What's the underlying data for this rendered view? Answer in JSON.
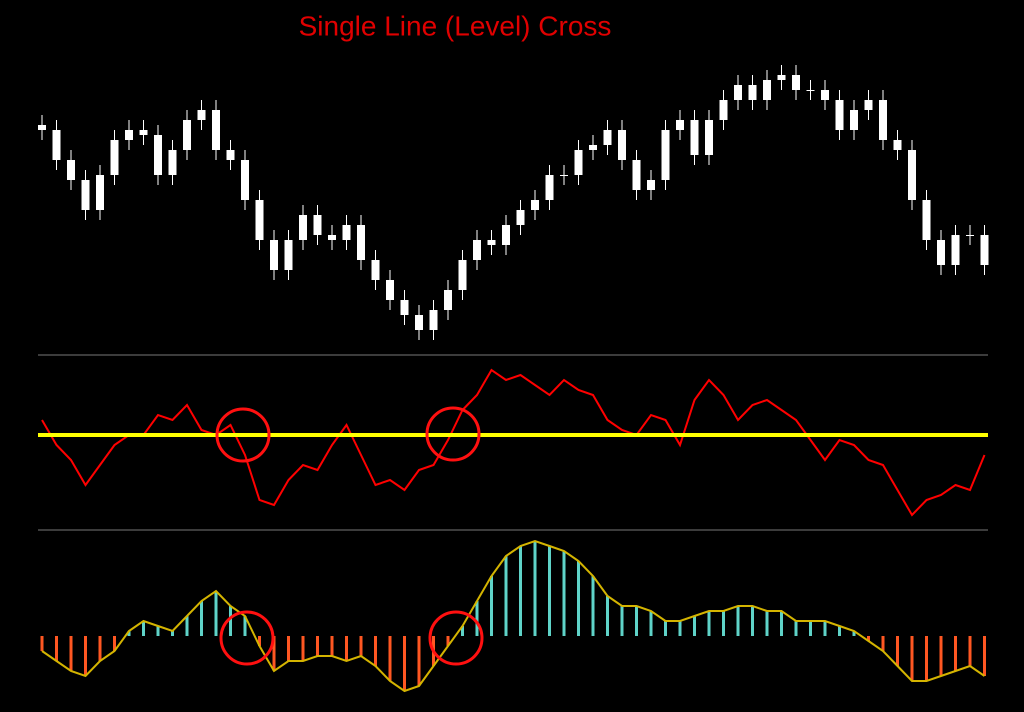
{
  "chart_data": [
    {
      "type": "candlestick",
      "title": "Single Line (Level) Cross",
      "color": "#ffffff",
      "ylim": [
        40,
        350
      ],
      "open": [
        275,
        270,
        240,
        220,
        190,
        225,
        260,
        270,
        265,
        225,
        250,
        280,
        290,
        250,
        240,
        200,
        160,
        130,
        160,
        185,
        165,
        160,
        175,
        140,
        120,
        100,
        85,
        70,
        90,
        110,
        140,
        160,
        155,
        175,
        190,
        200,
        225,
        225,
        250,
        255,
        270,
        240,
        210,
        220,
        270,
        280,
        245,
        280,
        300,
        315,
        300,
        320,
        325,
        310,
        310,
        300,
        270,
        290,
        300,
        260,
        250,
        200,
        160,
        135,
        165,
        165
      ],
      "high": [
        285,
        280,
        250,
        230,
        235,
        270,
        280,
        280,
        275,
        260,
        290,
        300,
        300,
        260,
        250,
        210,
        170,
        170,
        195,
        195,
        175,
        185,
        185,
        150,
        130,
        110,
        95,
        100,
        120,
        150,
        170,
        170,
        185,
        200,
        210,
        235,
        235,
        260,
        265,
        280,
        280,
        250,
        230,
        280,
        290,
        290,
        290,
        310,
        325,
        325,
        330,
        335,
        335,
        320,
        320,
        310,
        300,
        310,
        310,
        270,
        260,
        210,
        170,
        175,
        175,
        175
      ],
      "low": [
        260,
        230,
        210,
        180,
        180,
        215,
        250,
        255,
        215,
        215,
        240,
        270,
        240,
        230,
        190,
        150,
        120,
        120,
        150,
        155,
        150,
        150,
        130,
        110,
        90,
        75,
        60,
        60,
        80,
        100,
        130,
        145,
        145,
        165,
        180,
        190,
        215,
        215,
        240,
        245,
        230,
        200,
        200,
        210,
        260,
        235,
        235,
        270,
        290,
        290,
        290,
        310,
        300,
        300,
        290,
        260,
        260,
        280,
        250,
        240,
        190,
        150,
        125,
        125,
        155,
        125
      ],
      "close": [
        270,
        240,
        220,
        190,
        225,
        260,
        270,
        265,
        225,
        250,
        280,
        290,
        250,
        240,
        200,
        160,
        130,
        160,
        185,
        165,
        160,
        175,
        140,
        120,
        100,
        85,
        70,
        90,
        110,
        140,
        160,
        155,
        175,
        190,
        200,
        225,
        225,
        250,
        255,
        270,
        240,
        210,
        220,
        270,
        280,
        245,
        280,
        300,
        315,
        300,
        320,
        325,
        310,
        310,
        300,
        270,
        290,
        300,
        260,
        250,
        200,
        160,
        135,
        165,
        165,
        135
      ]
    },
    {
      "type": "line",
      "color": "#ff0000",
      "ylim": [
        -95,
        75
      ],
      "level": 0,
      "level_color": "#ffff00",
      "values": [
        15,
        -10,
        -25,
        -50,
        -30,
        -10,
        0,
        0,
        20,
        15,
        30,
        5,
        0,
        10,
        -20,
        -65,
        -70,
        -45,
        -30,
        -35,
        -10,
        10,
        -20,
        -50,
        -45,
        -55,
        -35,
        -30,
        -5,
        25,
        40,
        65,
        55,
        60,
        50,
        40,
        55,
        45,
        40,
        15,
        5,
        0,
        20,
        15,
        -10,
        35,
        55,
        40,
        15,
        30,
        35,
        25,
        15,
        -5,
        -25,
        -5,
        -10,
        -25,
        -30,
        -55,
        -80,
        -65,
        -60,
        -50,
        -55,
        -20
      ]
    },
    {
      "type": "histogram",
      "positive_color": "#5fd3c8",
      "negative_color": "#ff5722",
      "outline_color": "#d4b400",
      "ylim": [
        -76,
        100
      ],
      "values": [
        -15,
        -25,
        -35,
        -40,
        -25,
        -15,
        5,
        15,
        10,
        5,
        20,
        35,
        45,
        30,
        20,
        -10,
        -35,
        -25,
        -25,
        -20,
        -20,
        -25,
        -20,
        -30,
        -45,
        -55,
        -50,
        -30,
        -10,
        10,
        35,
        60,
        80,
        90,
        95,
        90,
        85,
        75,
        60,
        40,
        30,
        30,
        25,
        15,
        15,
        20,
        25,
        25,
        30,
        30,
        25,
        25,
        15,
        15,
        15,
        10,
        5,
        -5,
        -15,
        -30,
        -45,
        -45,
        -40,
        -35,
        -30,
        -40
      ]
    }
  ]
}
